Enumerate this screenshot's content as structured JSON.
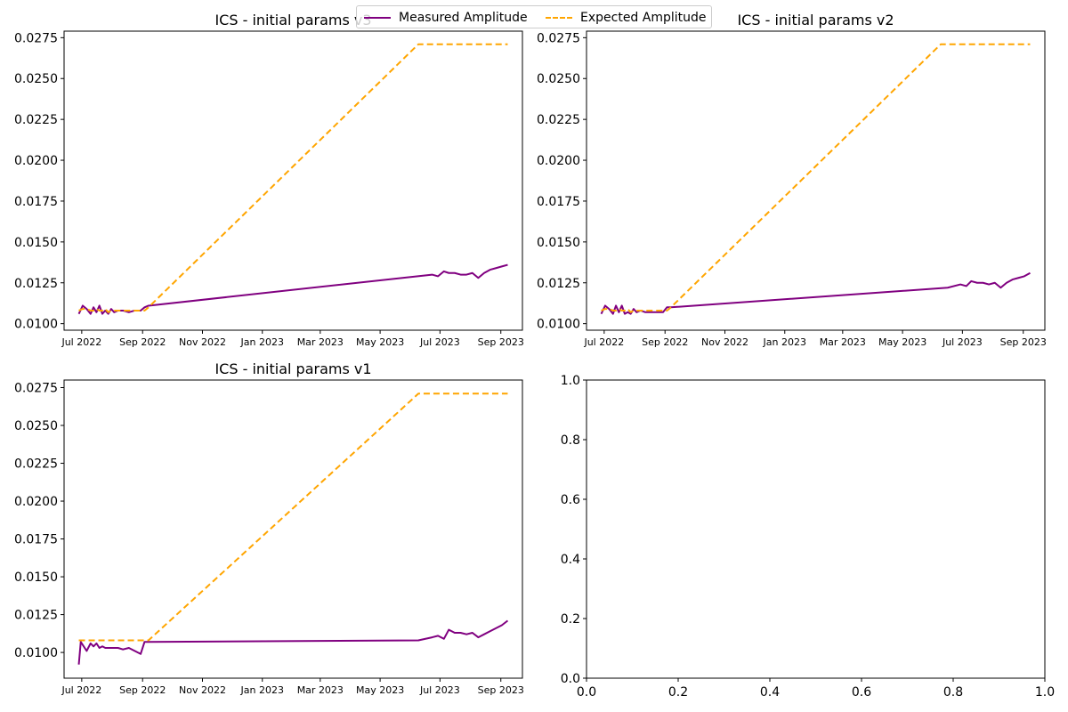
{
  "colors": {
    "measured": "#800080",
    "expected": "#ffa500",
    "axis": "#000000"
  },
  "legend": {
    "measured_label": "Measured Amplitude",
    "expected_label": "Expected Amplitude"
  },
  "chart_data": [
    {
      "type": "line",
      "title": "ICS - initial params v3",
      "xlabel": "",
      "ylabel": "",
      "x_is_date": true,
      "xlim": [
        "2022-06-13",
        "2023-09-23"
      ],
      "ylim": [
        0.0096,
        0.0279
      ],
      "xticks": [
        "2022-07-01",
        "2022-09-01",
        "2022-11-01",
        "2023-01-01",
        "2023-03-01",
        "2023-05-01",
        "2023-07-01",
        "2023-09-01"
      ],
      "xtick_labels": [
        "Jul 2022",
        "Sep 2022",
        "Nov 2022",
        "Jan 2023",
        "Mar 2023",
        "May 2023",
        "Jul 2023",
        "Sep 2023"
      ],
      "yticks": [
        0.01,
        0.0125,
        0.015,
        0.0175,
        0.02,
        0.0225,
        0.025,
        0.0275
      ],
      "ytick_labels": [
        "0.0100",
        "0.0125",
        "0.0150",
        "0.0175",
        "0.0200",
        "0.0225",
        "0.0250",
        "0.0275"
      ],
      "series": [
        {
          "name": "Measured Amplitude",
          "style": "solid",
          "x": [
            "2022-06-28",
            "2022-07-02",
            "2022-07-06",
            "2022-07-10",
            "2022-07-13",
            "2022-07-16",
            "2022-07-19",
            "2022-07-22",
            "2022-07-25",
            "2022-07-28",
            "2022-07-31",
            "2022-08-03",
            "2022-08-07",
            "2022-08-12",
            "2022-08-18",
            "2022-08-24",
            "2022-08-30",
            "2022-09-03",
            "2022-09-07",
            "2023-06-23",
            "2023-06-29",
            "2023-07-05",
            "2023-07-10",
            "2023-07-16",
            "2023-07-22",
            "2023-07-28",
            "2023-08-03",
            "2023-08-09",
            "2023-08-15",
            "2023-08-21",
            "2023-08-27",
            "2023-09-02",
            "2023-09-08"
          ],
          "y": [
            0.0106,
            0.0111,
            0.0109,
            0.0106,
            0.011,
            0.0107,
            0.0111,
            0.0106,
            0.0108,
            0.0106,
            0.0109,
            0.0107,
            0.0108,
            0.0108,
            0.0107,
            0.0108,
            0.0108,
            0.011,
            0.0111,
            0.013,
            0.0129,
            0.0132,
            0.0131,
            0.0131,
            0.013,
            0.013,
            0.0131,
            0.0128,
            0.0131,
            0.0133,
            0.0134,
            0.0135,
            0.0136
          ]
        },
        {
          "name": "Expected Amplitude",
          "style": "dashed",
          "x": [
            "2022-06-28",
            "2022-07-02",
            "2022-07-06",
            "2022-07-10",
            "2022-07-13",
            "2022-07-16",
            "2022-07-19",
            "2022-07-22",
            "2022-07-25",
            "2022-07-28",
            "2022-07-31",
            "2022-08-03",
            "2022-08-07",
            "2022-08-12",
            "2022-08-18",
            "2022-08-24",
            "2022-08-30",
            "2022-09-03",
            "2022-09-07",
            "2023-06-09",
            "2023-06-23",
            "2023-07-05",
            "2023-07-20",
            "2023-08-05",
            "2023-08-20",
            "2023-09-08"
          ],
          "y": [
            0.0108,
            0.0109,
            0.0109,
            0.0108,
            0.0108,
            0.0109,
            0.0108,
            0.0108,
            0.0109,
            0.0107,
            0.0108,
            0.0108,
            0.0108,
            0.0108,
            0.0108,
            0.0108,
            0.0108,
            0.0108,
            0.011,
            0.0271,
            0.0271,
            0.0271,
            0.0271,
            0.0271,
            0.0271,
            0.0271
          ]
        }
      ]
    },
    {
      "type": "line",
      "title": "ICS - initial params v2",
      "xlabel": "",
      "ylabel": "",
      "x_is_date": true,
      "xlim": [
        "2022-06-13",
        "2023-09-23"
      ],
      "ylim": [
        0.0096,
        0.0279
      ],
      "xticks": [
        "2022-07-01",
        "2022-09-01",
        "2022-11-01",
        "2023-01-01",
        "2023-03-01",
        "2023-05-01",
        "2023-07-01",
        "2023-09-01"
      ],
      "xtick_labels": [
        "Jul 2022",
        "Sep 2022",
        "Nov 2022",
        "Jan 2023",
        "Mar 2023",
        "May 2023",
        "Jul 2023",
        "Sep 2023"
      ],
      "yticks": [
        0.01,
        0.0125,
        0.015,
        0.0175,
        0.02,
        0.0225,
        0.025,
        0.0275
      ],
      "ytick_labels": [
        "0.0100",
        "0.0125",
        "0.0150",
        "0.0175",
        "0.0200",
        "0.0225",
        "0.0250",
        "0.0275"
      ],
      "series": [
        {
          "name": "Measured Amplitude",
          "style": "solid",
          "x": [
            "2022-06-28",
            "2022-07-02",
            "2022-07-06",
            "2022-07-10",
            "2022-07-13",
            "2022-07-16",
            "2022-07-19",
            "2022-07-22",
            "2022-07-25",
            "2022-07-28",
            "2022-07-31",
            "2022-08-03",
            "2022-08-07",
            "2022-08-12",
            "2022-08-18",
            "2022-08-24",
            "2022-08-30",
            "2022-09-03",
            "2022-09-07",
            "2023-06-16",
            "2023-06-29",
            "2023-07-05",
            "2023-07-10",
            "2023-07-16",
            "2023-07-22",
            "2023-07-28",
            "2023-08-03",
            "2023-08-09",
            "2023-08-15",
            "2023-08-21",
            "2023-08-27",
            "2023-09-02",
            "2023-09-08"
          ],
          "y": [
            0.0106,
            0.0111,
            0.0109,
            0.0106,
            0.0111,
            0.0107,
            0.0111,
            0.0106,
            0.0107,
            0.0106,
            0.0109,
            0.0107,
            0.0108,
            0.0107,
            0.0107,
            0.0107,
            0.0107,
            0.011,
            0.011,
            0.0122,
            0.0124,
            0.0123,
            0.0126,
            0.0125,
            0.0125,
            0.0124,
            0.0125,
            0.0122,
            0.0125,
            0.0127,
            0.0128,
            0.0129,
            0.0131
          ]
        },
        {
          "name": "Expected Amplitude",
          "style": "dashed",
          "x": [
            "2022-06-28",
            "2022-07-02",
            "2022-07-06",
            "2022-07-10",
            "2022-07-13",
            "2022-07-16",
            "2022-07-19",
            "2022-07-22",
            "2022-07-25",
            "2022-07-28",
            "2022-07-31",
            "2022-08-03",
            "2022-08-07",
            "2022-08-12",
            "2022-08-18",
            "2022-08-24",
            "2022-08-30",
            "2022-09-03",
            "2022-09-07",
            "2023-06-09",
            "2023-06-23",
            "2023-07-05",
            "2023-07-20",
            "2023-08-05",
            "2023-08-20",
            "2023-09-08"
          ],
          "y": [
            0.0108,
            0.0109,
            0.0109,
            0.0108,
            0.0108,
            0.0109,
            0.0108,
            0.0108,
            0.0109,
            0.0107,
            0.0108,
            0.0108,
            0.0108,
            0.0108,
            0.0108,
            0.0108,
            0.0108,
            0.0108,
            0.011,
            0.0271,
            0.0271,
            0.0271,
            0.0271,
            0.0271,
            0.0271,
            0.0271
          ]
        }
      ]
    },
    {
      "type": "line",
      "title": "ICS - initial params v1",
      "xlabel": "",
      "ylabel": "",
      "x_is_date": true,
      "xlim": [
        "2022-06-13",
        "2023-09-23"
      ],
      "ylim": [
        0.0083,
        0.028
      ],
      "xticks": [
        "2022-07-01",
        "2022-09-01",
        "2022-11-01",
        "2023-01-01",
        "2023-03-01",
        "2023-05-01",
        "2023-07-01",
        "2023-09-01"
      ],
      "xtick_labels": [
        "Jul 2022",
        "Sep 2022",
        "Nov 2022",
        "Jan 2023",
        "Mar 2023",
        "May 2023",
        "Jul 2023",
        "Sep 2023"
      ],
      "yticks": [
        0.01,
        0.0125,
        0.015,
        0.0175,
        0.02,
        0.0225,
        0.025,
        0.0275
      ],
      "ytick_labels": [
        "0.0100",
        "0.0125",
        "0.0150",
        "0.0175",
        "0.0200",
        "0.0225",
        "0.0250",
        "0.0275"
      ],
      "series": [
        {
          "name": "Measured Amplitude",
          "style": "solid",
          "x": [
            "2022-06-28",
            "2022-06-30",
            "2022-07-06",
            "2022-07-10",
            "2022-07-13",
            "2022-07-16",
            "2022-07-19",
            "2022-07-22",
            "2022-07-25",
            "2022-07-28",
            "2022-07-31",
            "2022-08-03",
            "2022-08-07",
            "2022-08-12",
            "2022-08-18",
            "2022-08-24",
            "2022-08-30",
            "2022-09-03",
            "2022-09-07",
            "2023-06-09",
            "2023-06-23",
            "2023-06-29",
            "2023-07-05",
            "2023-07-10",
            "2023-07-16",
            "2023-07-22",
            "2023-07-28",
            "2023-08-03",
            "2023-08-09",
            "2023-08-15",
            "2023-08-21",
            "2023-08-27",
            "2023-09-02",
            "2023-09-08"
          ],
          "y": [
            0.0092,
            0.0107,
            0.0101,
            0.0106,
            0.0104,
            0.0106,
            0.0103,
            0.0104,
            0.0103,
            0.0103,
            0.0103,
            0.0103,
            0.0103,
            0.0102,
            0.0103,
            0.0101,
            0.0099,
            0.0107,
            0.0107,
            0.0108,
            0.011,
            0.0111,
            0.0109,
            0.0115,
            0.0113,
            0.0113,
            0.0112,
            0.0113,
            0.011,
            0.0112,
            0.0114,
            0.0116,
            0.0118,
            0.0121
          ]
        },
        {
          "name": "Expected Amplitude",
          "style": "dashed",
          "x": [
            "2022-06-28",
            "2022-09-07",
            "2023-06-09",
            "2023-09-08"
          ],
          "y": [
            0.0108,
            0.0108,
            0.0271,
            0.0271
          ]
        }
      ]
    },
    {
      "type": "line",
      "title": "",
      "xlabel": "",
      "ylabel": "",
      "x_is_date": false,
      "xlim": [
        0,
        1
      ],
      "ylim": [
        0,
        1
      ],
      "xticks": [
        0.0,
        0.2,
        0.4,
        0.6,
        0.8,
        1.0
      ],
      "xtick_labels": [
        "0.0",
        "0.2",
        "0.4",
        "0.6",
        "0.8",
        "1.0"
      ],
      "yticks": [
        0.0,
        0.2,
        0.4,
        0.6,
        0.8,
        1.0
      ],
      "ytick_labels": [
        "0.0",
        "0.2",
        "0.4",
        "0.6",
        "0.8",
        "1.0"
      ],
      "series": []
    }
  ]
}
